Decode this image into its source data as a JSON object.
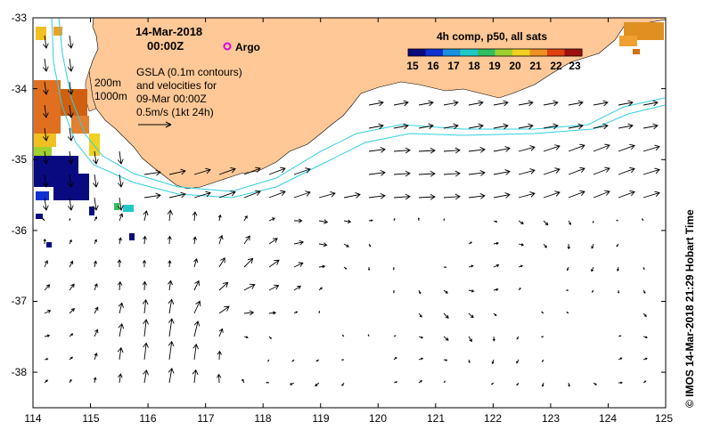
{
  "title": {
    "date": "14-Mar-2018",
    "time": "00:00Z"
  },
  "legend": {
    "argo_label": "Argo",
    "argo_color": "#e000e0",
    "colorbar_title": "4h comp, p50, all sats",
    "colorbar_ticks": [
      "15",
      "16",
      "17",
      "18",
      "19",
      "20",
      "21",
      "22",
      "23"
    ],
    "colorbar_colors": [
      "#0a0a80",
      "#1030d0",
      "#1890e0",
      "#20c8c8",
      "#30c060",
      "#a0d030",
      "#f0d020",
      "#f09020",
      "#e04010",
      "#a01010"
    ]
  },
  "annotations": {
    "gsla_line1": "GSLA (0.1m contours)",
    "gsla_line2": "and velocities for",
    "gsla_line3": "09-Mar 00:00Z",
    "scale_label": "0.5m/s (1kt 24h)",
    "contour_200": "200m",
    "contour_1000": "1000m"
  },
  "credit": "© IMOS 14-Mar-2018 21:29 Hobart Time",
  "axes": {
    "x_ticks": [
      "114",
      "115",
      "116",
      "117",
      "118",
      "119",
      "120",
      "121",
      "122",
      "123",
      "124",
      "125"
    ],
    "y_ticks": [
      "-33",
      "-34",
      "-35",
      "-36",
      "-37",
      "-38"
    ]
  },
  "map_data": {
    "lon_range": [
      114,
      125
    ],
    "lat_range": [
      -38.5,
      -33
    ],
    "land_color": "#ffc896",
    "isobath_color": "#30d0e0"
  }
}
